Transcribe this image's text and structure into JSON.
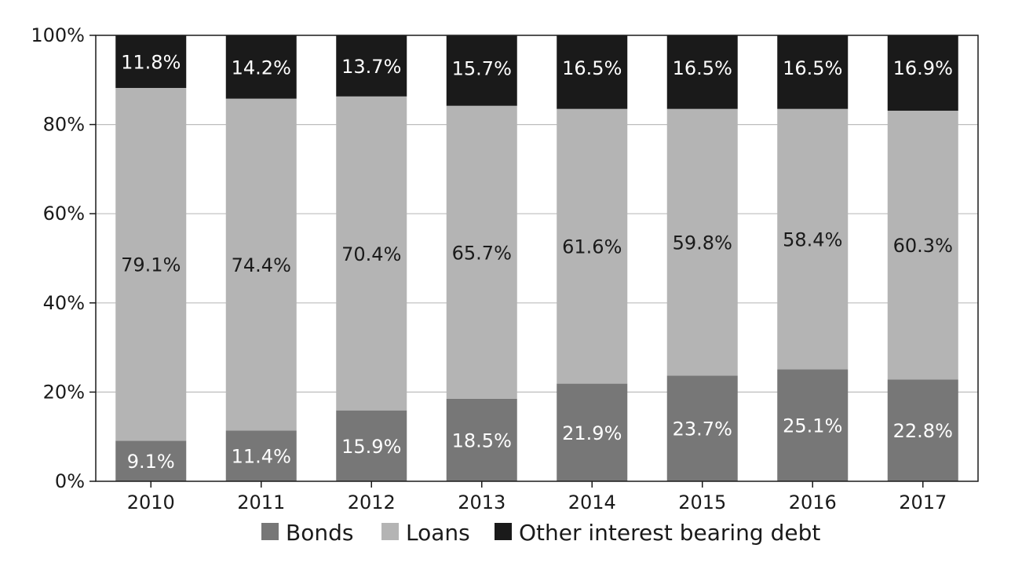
{
  "chart_data": {
    "type": "bar",
    "stacked": true,
    "categories": [
      "2010",
      "2011",
      "2012",
      "2013",
      "2014",
      "2015",
      "2016",
      "2017"
    ],
    "series": [
      {
        "name": "Bonds",
        "color": "#777777",
        "label_color": "#ffffff",
        "values": [
          9.1,
          11.4,
          15.9,
          18.5,
          21.9,
          23.7,
          25.1,
          22.8
        ],
        "labels": [
          "9.1%",
          "11.4%",
          "15.9%",
          "18.5%",
          "21.9%",
          "23.7%",
          "25.1%",
          "22.8%"
        ]
      },
      {
        "name": "Loans",
        "color": "#b4b4b4",
        "label_color": "#1a1a1a",
        "values": [
          79.1,
          74.4,
          70.4,
          65.7,
          61.6,
          59.8,
          58.4,
          60.3
        ],
        "labels": [
          "79.1%",
          "74.4%",
          "70.4%",
          "65.7%",
          "61.6%",
          "59.8%",
          "58.4%",
          "60.3%"
        ]
      },
      {
        "name": "Other interest bearing debt",
        "color": "#1a1a1a",
        "label_color": "#ffffff",
        "values": [
          11.8,
          14.2,
          13.7,
          15.7,
          16.5,
          16.5,
          16.5,
          16.9
        ],
        "labels": [
          "11.8%",
          "14.2%",
          "13.7%",
          "15.7%",
          "16.5%",
          "16.5%",
          "16.5%",
          "16.9%"
        ]
      }
    ],
    "title": "",
    "xlabel": "",
    "ylabel": "",
    "ylim": [
      0,
      100
    ],
    "y_ticks": [
      0,
      20,
      40,
      60,
      80,
      100
    ],
    "y_tick_labels": [
      "0%",
      "20%",
      "40%",
      "60%",
      "80%",
      "100%"
    ],
    "grid": true,
    "legend_position": "bottom"
  }
}
